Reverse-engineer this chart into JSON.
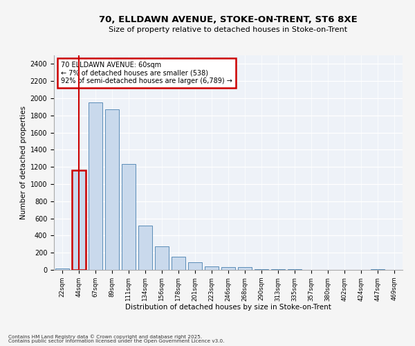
{
  "title1": "70, ELLDAWN AVENUE, STOKE-ON-TRENT, ST6 8XE",
  "title2": "Size of property relative to detached houses in Stoke-on-Trent",
  "xlabel": "Distribution of detached houses by size in Stoke-on-Trent",
  "ylabel": "Number of detached properties",
  "categories": [
    "22sqm",
    "44sqm",
    "67sqm",
    "89sqm",
    "111sqm",
    "134sqm",
    "156sqm",
    "178sqm",
    "201sqm",
    "223sqm",
    "246sqm",
    "268sqm",
    "290sqm",
    "313sqm",
    "335sqm",
    "357sqm",
    "380sqm",
    "402sqm",
    "424sqm",
    "447sqm",
    "469sqm"
  ],
  "values": [
    20,
    1160,
    1950,
    1870,
    1230,
    515,
    275,
    155,
    90,
    40,
    35,
    30,
    10,
    12,
    5,
    4,
    2,
    3,
    1,
    10,
    1
  ],
  "bar_color": "#c9d9ec",
  "bar_edge_color": "#5b8db8",
  "highlight_bar_index": 1,
  "highlight_edge_color": "#cc0000",
  "annotation_text": "70 ELLDAWN AVENUE: 60sqm\n← 7% of detached houses are smaller (538)\n92% of semi-detached houses are larger (6,789) →",
  "annotation_box_color": "#ffffff",
  "annotation_box_edge": "#cc0000",
  "ylim": [
    0,
    2500
  ],
  "yticks": [
    0,
    200,
    400,
    600,
    800,
    1000,
    1200,
    1400,
    1600,
    1800,
    2000,
    2200,
    2400
  ],
  "bg_color": "#eef2f8",
  "fig_color": "#f5f5f5",
  "footer1": "Contains HM Land Registry data © Crown copyright and database right 2025.",
  "footer2": "Contains public sector information licensed under the Open Government Licence v3.0."
}
